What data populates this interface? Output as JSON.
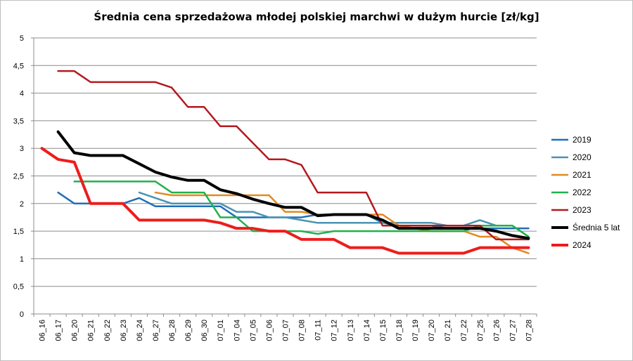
{
  "chart_data": {
    "type": "line",
    "title": "Średnia cena sprzedażowa młodej polskiej marchwi w dużym hurcie [zł/kg]",
    "xlabel": "",
    "ylabel": "",
    "ylim": [
      0,
      5
    ],
    "y_ticks": [
      "0",
      "0,5",
      "1",
      "1,5",
      "2",
      "2,5",
      "3",
      "3,5",
      "4",
      "4,5",
      "5"
    ],
    "categories": [
      "06_16",
      "06_17",
      "06_20",
      "06_21",
      "06_22",
      "06_23",
      "06_24",
      "06_27",
      "06_28",
      "06_29",
      "06_30",
      "07_01",
      "07_04",
      "07_05",
      "07_06",
      "07_07",
      "07_08",
      "07_11",
      "07_12",
      "07_13",
      "07_14",
      "07_15",
      "07_18",
      "07_19",
      "07_20",
      "07_21",
      "07_22",
      "07_25",
      "07_26",
      "07_27",
      "07_28"
    ],
    "grid": "horizontal",
    "legend_position": "right",
    "series": [
      {
        "name": "2019",
        "color": "#1f6fb4",
        "width": 2.5,
        "values": [
          null,
          2.2,
          2.0,
          2.0,
          2.0,
          2.0,
          2.1,
          1.95,
          1.95,
          1.95,
          1.95,
          1.95,
          1.75,
          1.75,
          1.75,
          1.75,
          1.75,
          1.8,
          1.8,
          1.8,
          1.8,
          1.65,
          1.6,
          1.6,
          1.6,
          1.55,
          1.55,
          1.55,
          1.55,
          1.55,
          1.55
        ]
      },
      {
        "name": "2020",
        "color": "#4a93b2",
        "width": 2.5,
        "values": [
          null,
          null,
          null,
          null,
          null,
          null,
          2.2,
          2.1,
          2.0,
          2.0,
          2.0,
          2.0,
          1.85,
          1.85,
          1.75,
          1.75,
          1.7,
          1.65,
          1.65,
          1.65,
          1.65,
          1.65,
          1.65,
          1.65,
          1.65,
          1.6,
          1.6,
          1.7,
          1.6,
          1.6,
          1.4
        ]
      },
      {
        "name": "2021",
        "color": "#e08a22",
        "width": 2.5,
        "values": [
          null,
          null,
          null,
          null,
          null,
          null,
          null,
          2.2,
          2.15,
          2.15,
          2.15,
          2.15,
          2.15,
          2.15,
          2.15,
          1.85,
          1.85,
          1.8,
          1.8,
          1.8,
          1.8,
          1.8,
          1.6,
          1.55,
          1.5,
          1.5,
          1.5,
          1.4,
          1.4,
          1.2,
          1.1
        ]
      },
      {
        "name": "2022",
        "color": "#22b04b",
        "width": 2.5,
        "values": [
          null,
          null,
          2.4,
          2.4,
          2.4,
          2.4,
          2.4,
          2.4,
          2.2,
          2.2,
          2.2,
          1.75,
          1.75,
          1.5,
          1.5,
          1.5,
          1.5,
          1.45,
          1.5,
          1.5,
          1.5,
          1.5,
          1.5,
          1.5,
          1.5,
          1.5,
          1.5,
          1.6,
          1.6,
          1.6,
          1.4
        ]
      },
      {
        "name": "2023",
        "color": "#b3191f",
        "width": 2.5,
        "values": [
          null,
          4.4,
          4.4,
          4.2,
          4.2,
          4.2,
          4.2,
          4.2,
          4.1,
          3.75,
          3.75,
          3.4,
          3.4,
          3.1,
          2.8,
          2.8,
          2.7,
          2.2,
          2.2,
          2.2,
          2.2,
          1.6,
          1.6,
          1.6,
          1.6,
          1.6,
          1.6,
          1.6,
          1.35,
          1.35,
          1.35
        ]
      },
      {
        "name": "Średnia 5 lat",
        "color": "#000000",
        "width": 4,
        "values": [
          null,
          3.3,
          2.92,
          2.87,
          2.87,
          2.87,
          2.72,
          2.57,
          2.48,
          2.42,
          2.42,
          2.25,
          2.18,
          2.08,
          2.0,
          1.93,
          1.93,
          1.78,
          1.8,
          1.8,
          1.8,
          1.7,
          1.55,
          1.55,
          1.55,
          1.55,
          1.55,
          1.55,
          1.5,
          1.42,
          1.37
        ]
      },
      {
        "name": "2024",
        "color": "#ee1c1c",
        "width": 4,
        "values": [
          3.0,
          2.8,
          2.75,
          2.0,
          2.0,
          2.0,
          1.7,
          1.7,
          1.7,
          1.7,
          1.7,
          1.65,
          1.55,
          1.55,
          1.5,
          1.5,
          1.35,
          1.35,
          1.35,
          1.2,
          1.2,
          1.2,
          1.1,
          1.1,
          1.1,
          1.1,
          1.1,
          1.2,
          1.2,
          1.2,
          1.2
        ]
      }
    ]
  }
}
